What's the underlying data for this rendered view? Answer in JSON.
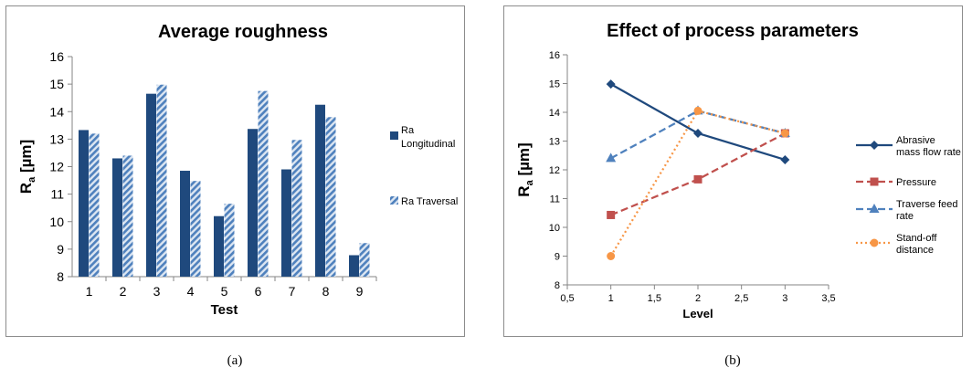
{
  "chart_data": [
    {
      "type": "bar",
      "title": "Average roughness",
      "xlabel": "Test",
      "ylabel_main": "R",
      "ylabel_sub": "a",
      "ylabel_unit": " [µm]",
      "ylim": [
        8,
        16
      ],
      "yticks": [
        "8",
        "9",
        "10",
        "11",
        "12",
        "13",
        "14",
        "15",
        "16"
      ],
      "categories": [
        "1",
        "2",
        "3",
        "4",
        "5",
        "6",
        "7",
        "8",
        "9"
      ],
      "series": [
        {
          "name": "Ra Longitudinal",
          "legend_lines": [
            "Ra",
            "Longitudinal"
          ],
          "color": "#1f497d",
          "pattern": "solid",
          "values": [
            13.33,
            12.3,
            14.65,
            11.85,
            10.2,
            13.37,
            11.9,
            14.25,
            8.78
          ]
        },
        {
          "name": "Ra Traversal",
          "legend_lines": [
            "Ra Traversal"
          ],
          "color": "#4f81bd",
          "pattern": "diagonal-hatch",
          "values": [
            13.2,
            12.4,
            14.98,
            11.48,
            10.65,
            14.75,
            12.97,
            13.8,
            9.22
          ]
        }
      ],
      "grid": false,
      "legend_position": "right"
    },
    {
      "type": "line",
      "title": "Effect of process parameters",
      "xlabel": "Level",
      "ylabel_main": "R",
      "ylabel_sub": "a",
      "ylabel_unit": " [µm]",
      "xlim": [
        0.5,
        3.5
      ],
      "ylim": [
        8,
        16
      ],
      "xticks": [
        "0,5",
        "1",
        "1,5",
        "2",
        "2,5",
        "3",
        "3,5"
      ],
      "yticks": [
        "8",
        "9",
        "10",
        "11",
        "12",
        "13",
        "14",
        "15",
        "16"
      ],
      "series": [
        {
          "name": "Abrasive mass flow rate",
          "legend_lines": [
            "Abrasive",
            "mass flow rate"
          ],
          "color": "#1f497d",
          "dash": "solid",
          "marker": "diamond",
          "x": [
            1,
            2,
            3
          ],
          "y": [
            14.98,
            13.27,
            12.35
          ]
        },
        {
          "name": "Pressure",
          "legend_lines": [
            "Pressure"
          ],
          "color": "#c0504d",
          "dash": "dashed",
          "marker": "square",
          "x": [
            1,
            2,
            3
          ],
          "y": [
            10.43,
            11.67,
            13.27
          ]
        },
        {
          "name": "Traverse feed rate",
          "legend_lines": [
            "Traverse feed",
            "rate"
          ],
          "color": "#4f81bd",
          "dash": "dashed",
          "marker": "triangle",
          "x": [
            1,
            2,
            3
          ],
          "y": [
            12.4,
            14.05,
            13.27
          ]
        },
        {
          "name": "Stand-off distance",
          "legend_lines": [
            "Stand-off",
            "distance"
          ],
          "color": "#f79646",
          "dash": "dotted",
          "marker": "circle",
          "x": [
            1,
            2,
            3
          ],
          "y": [
            9.0,
            14.05,
            13.27
          ]
        }
      ],
      "grid": false,
      "legend_position": "right"
    }
  ],
  "captions": {
    "a": "(a)",
    "b": "(b)"
  }
}
